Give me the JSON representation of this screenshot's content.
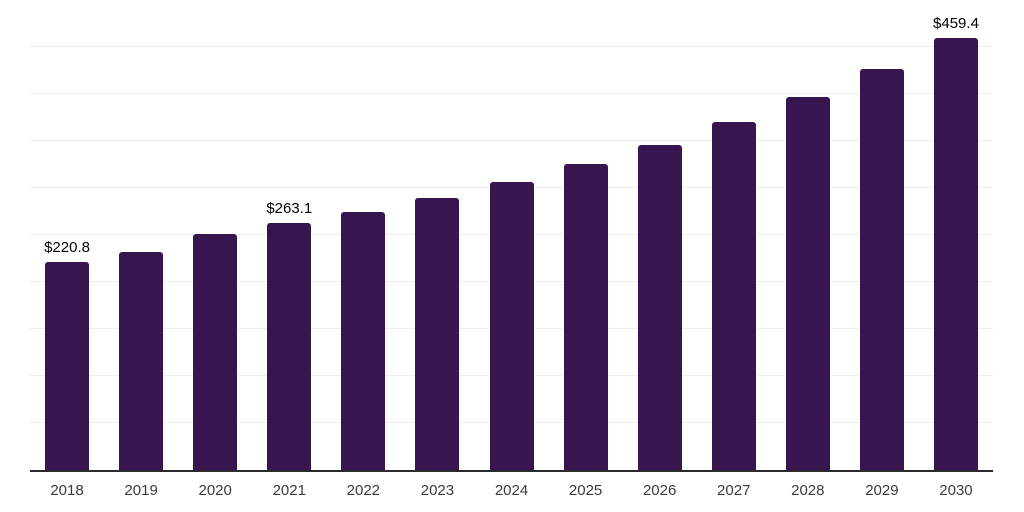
{
  "chart_data": {
    "type": "bar",
    "title": "",
    "xlabel": "",
    "ylabel": "",
    "categories": [
      "2018",
      "2019",
      "2020",
      "2021",
      "2022",
      "2023",
      "2024",
      "2025",
      "2026",
      "2027",
      "2028",
      "2029",
      "2030"
    ],
    "values": [
      220.8,
      231.7,
      251.6,
      263.1,
      275.0,
      289.9,
      306.1,
      325.6,
      346.1,
      369.7,
      396.3,
      426.8,
      459.4
    ],
    "annotations": [
      {
        "index": 0,
        "label": "$220.8"
      },
      {
        "index": 3,
        "label": "$263.1"
      },
      {
        "index": 12,
        "label": "$459.4"
      }
    ],
    "ylim": [
      0,
      500
    ],
    "gridline_step": 50,
    "grid": true,
    "legend": false,
    "y_axis_labels_visible": false,
    "colors": {
      "bar": "#371650",
      "axis_line": "#2b2b2b",
      "gridline": "#ededed",
      "tick_label": "#3b3b3b",
      "annotation": "#000000",
      "background": "#ffffff"
    }
  }
}
